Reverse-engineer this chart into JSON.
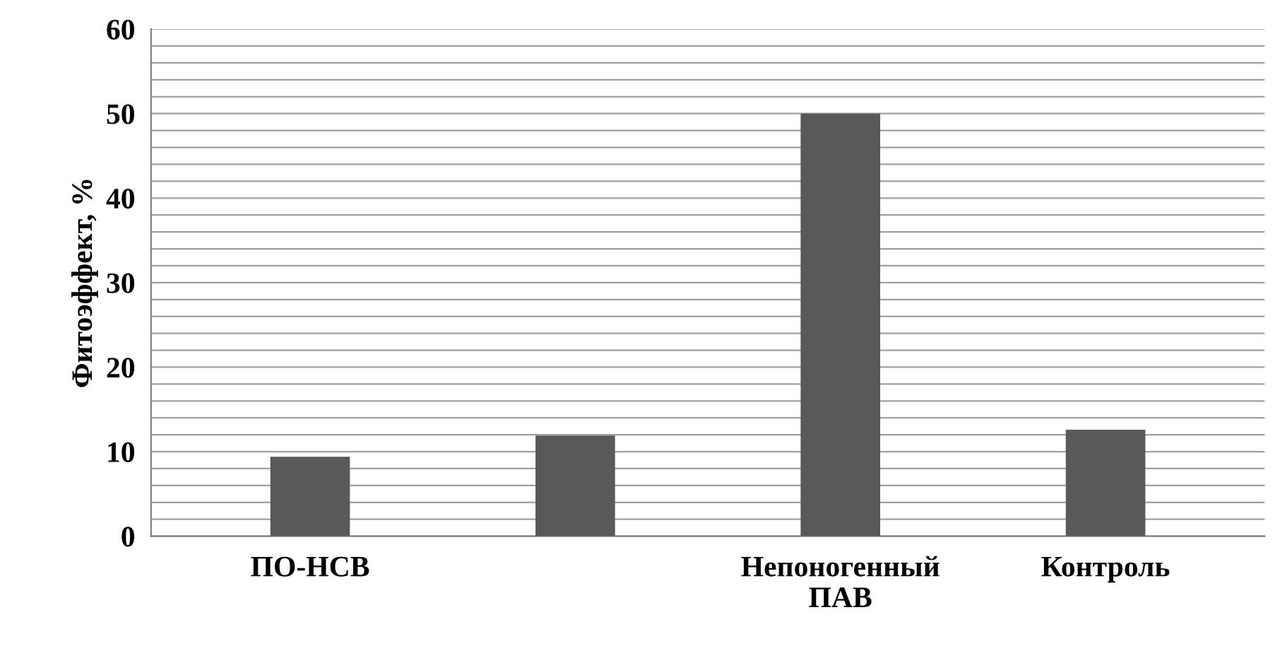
{
  "chart_data": {
    "type": "bar",
    "ylabel": "Фитоэффект, %",
    "categories": [
      "ПО-НСВ",
      null,
      "Непоногенный ПАВ",
      "Контроль"
    ],
    "values": [
      9.4,
      11.9,
      50.0,
      12.6
    ],
    "color": "#595959",
    "ylim": [
      0,
      60
    ],
    "yticks": [
      0,
      {
        "value": 2,
        "label": null
      },
      {
        "value": 4,
        "label": null
      },
      {
        "value": 6,
        "label": null
      },
      {
        "value": 8,
        "label": null
      },
      10,
      {
        "value": 12,
        "label": null
      },
      {
        "value": 14,
        "label": null
      },
      {
        "value": 16,
        "label": null
      },
      {
        "value": 18,
        "label": null
      },
      20,
      {
        "value": 22,
        "label": null
      },
      {
        "value": 24,
        "label": null
      },
      {
        "value": 26,
        "label": null
      },
      {
        "value": 28,
        "label": null
      },
      30,
      {
        "value": 32,
        "label": null
      },
      {
        "value": 34,
        "label": null
      },
      {
        "value": 36,
        "label": null
      },
      {
        "value": 38,
        "label": null
      },
      40,
      {
        "value": 42,
        "label": null
      },
      {
        "value": 44,
        "label": null
      },
      {
        "value": 46,
        "label": null
      },
      {
        "value": 48,
        "label": null
      },
      50,
      {
        "value": 52,
        "label": null
      },
      {
        "value": 54,
        "label": null
      },
      {
        "value": 56,
        "label": null
      },
      {
        "value": 58,
        "label": null
      },
      60
    ],
    "grid": "y",
    "legend": false
  }
}
